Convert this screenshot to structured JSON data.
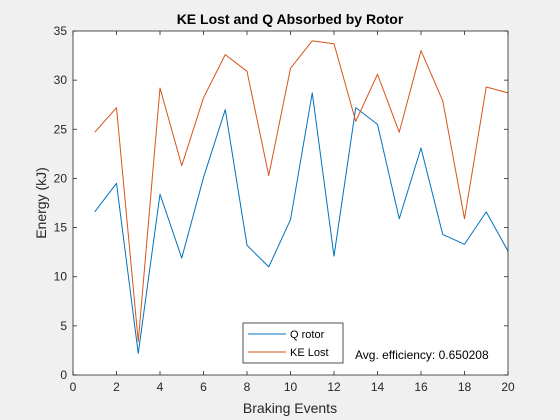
{
  "colors": {
    "figure_bg": "#f0f0f0",
    "axes_bg": "#ffffff",
    "axis": "#262626"
  },
  "chart_data": {
    "type": "line",
    "title": "KE Lost and Q Absorbed by Rotor",
    "xlabel": "Braking Events",
    "ylabel": "Energy (kJ)",
    "xlim": [
      0,
      20
    ],
    "ylim": [
      0,
      35
    ],
    "xticks": [
      0,
      2,
      4,
      6,
      8,
      10,
      12,
      14,
      16,
      18,
      20
    ],
    "yticks": [
      0,
      5,
      10,
      15,
      20,
      25,
      30,
      35
    ],
    "grid": false,
    "legend_position": "bottom-center",
    "x": [
      1,
      2,
      3,
      4,
      5,
      6,
      7,
      8,
      9,
      10,
      11,
      12,
      13,
      14,
      15,
      16,
      17,
      18,
      19,
      20
    ],
    "series": [
      {
        "name": "Q rotor",
        "color": "#0072bd",
        "values": [
          16.6,
          19.5,
          2.2,
          18.4,
          11.9,
          20.1,
          27.0,
          13.2,
          11.0,
          15.8,
          28.7,
          12.1,
          27.2,
          25.5,
          15.9,
          23.1,
          14.3,
          13.3,
          16.6,
          12.6
        ]
      },
      {
        "name": "KE Lost",
        "color": "#d95319",
        "values": [
          24.7,
          27.2,
          3.4,
          29.2,
          21.3,
          28.2,
          32.6,
          30.9,
          20.3,
          31.2,
          34.0,
          33.7,
          25.8,
          30.6,
          24.7,
          33.0,
          27.9,
          15.9,
          29.3,
          28.7
        ]
      }
    ],
    "annotation": "Avg. efficiency: 0.650208"
  }
}
